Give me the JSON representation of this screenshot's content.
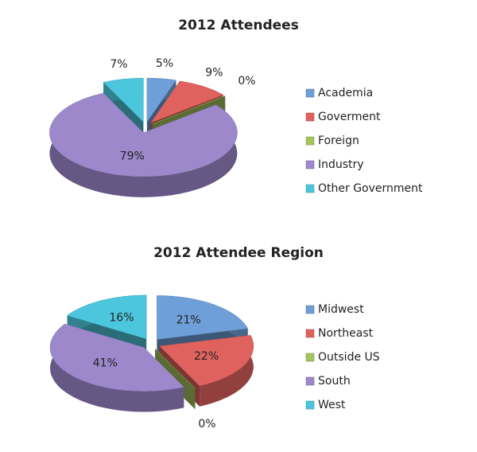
{
  "chart_data": [
    {
      "type": "pie",
      "title": "2012 Attendees",
      "categories": [
        "Academia",
        "Goverment",
        "Foreign",
        "Industry",
        "Other Government"
      ],
      "values": [
        5,
        9,
        0,
        79,
        7
      ],
      "value_labels": [
        "5%",
        "9%",
        "0%",
        "79%",
        "7%"
      ],
      "colors": [
        "#6f9fd8",
        "#e0625e",
        "#a4c45e",
        "#9d88cc",
        "#4cc6dc"
      ],
      "legend": "right"
    },
    {
      "type": "pie",
      "title": "2012 Attendee Region",
      "categories": [
        "Midwest",
        "Northeast",
        "Outside US",
        "South",
        "West"
      ],
      "values": [
        21,
        22,
        0,
        41,
        16
      ],
      "value_labels": [
        "21%",
        "22%",
        "0%",
        "41%",
        "16%"
      ],
      "colors": [
        "#6f9fd8",
        "#e0625e",
        "#a4c45e",
        "#9d88cc",
        "#4cc6dc"
      ],
      "legend": "right"
    }
  ]
}
